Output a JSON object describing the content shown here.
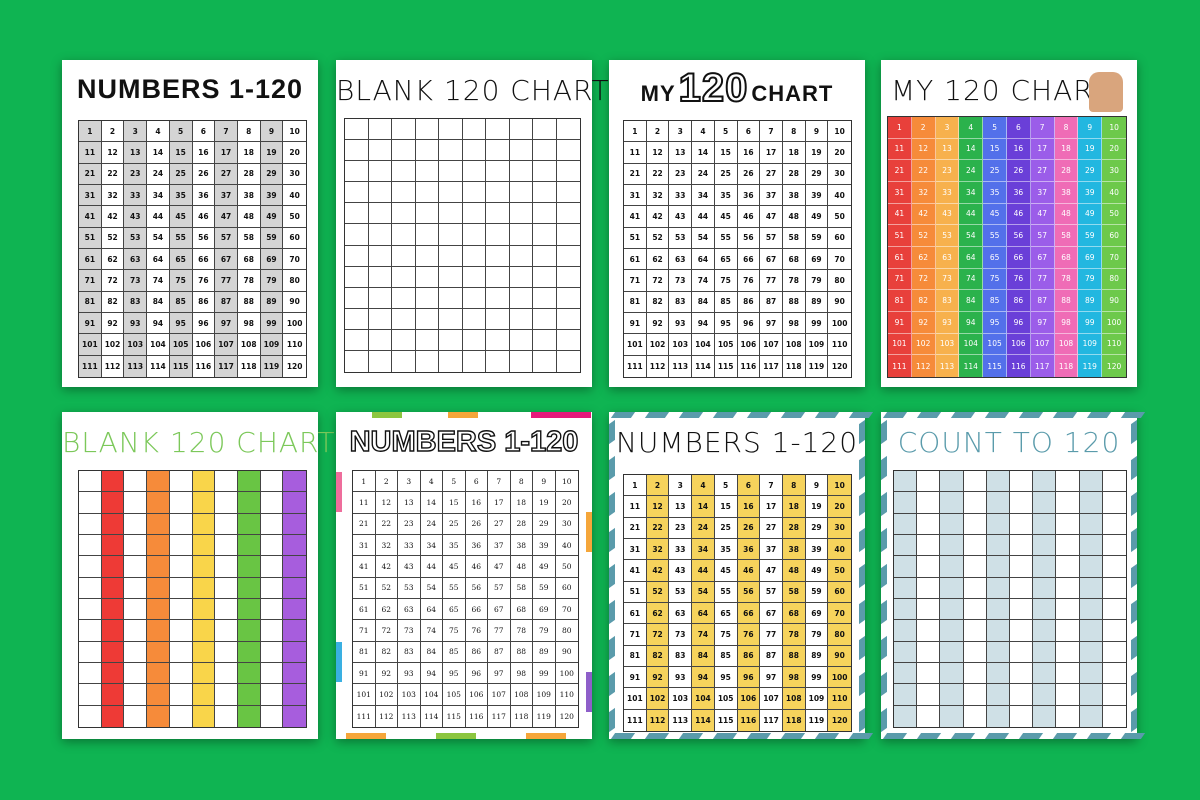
{
  "numbers": [
    1,
    2,
    3,
    4,
    5,
    6,
    7,
    8,
    9,
    10,
    11,
    12,
    13,
    14,
    15,
    16,
    17,
    18,
    19,
    20,
    21,
    22,
    23,
    24,
    25,
    26,
    27,
    28,
    29,
    30,
    31,
    32,
    33,
    34,
    35,
    36,
    37,
    38,
    39,
    40,
    41,
    42,
    43,
    44,
    45,
    46,
    47,
    48,
    49,
    50,
    51,
    52,
    53,
    54,
    55,
    56,
    57,
    58,
    59,
    60,
    61,
    62,
    63,
    64,
    65,
    66,
    67,
    68,
    69,
    70,
    71,
    72,
    73,
    74,
    75,
    76,
    77,
    78,
    79,
    80,
    81,
    82,
    83,
    84,
    85,
    86,
    87,
    88,
    89,
    90,
    91,
    92,
    93,
    94,
    95,
    96,
    97,
    98,
    99,
    100,
    101,
    102,
    103,
    104,
    105,
    106,
    107,
    108,
    109,
    110,
    111,
    112,
    113,
    114,
    115,
    116,
    117,
    118,
    119,
    120
  ],
  "colors": {
    "background": "#0fb452",
    "gray_column": "#d4d4d4",
    "yellow_column": "#f6d35c",
    "blue_column": "#cfe0e6",
    "teal_stripe": "#5a9bab",
    "rainbow": [
      "#e8403b",
      "#f68b3a",
      "#f7b14d",
      "#2bb24c",
      "#5370ea",
      "#6a3fd8",
      "#9b5de9",
      "#ef6cb6",
      "#22b7e0",
      "#6dc94b"
    ],
    "rainbow_blank": [
      "#ffffff",
      "#ee3a36",
      "#ffffff",
      "#f68b3a",
      "#ffffff",
      "#f9d54a",
      "#ffffff",
      "#69c544",
      "#ffffff",
      "#a75ddd"
    ]
  },
  "cards": [
    {
      "title": "NUMBERS 1-120",
      "style": "gray",
      "filled": true
    },
    {
      "title": "BLANK 120 CHART",
      "style": "blank",
      "filled": false
    },
    {
      "title_prefix": "MY",
      "title_big": "120",
      "title_suffix": "CHART",
      "style": "plain",
      "filled": true
    },
    {
      "title": "MY 120 CHART",
      "style": "rainbow",
      "filled": true
    },
    {
      "title": "BLANK 120 CHART",
      "style": "rainbow-blank",
      "filled": false
    },
    {
      "title": "NUMBERS 1-120",
      "style": "outline",
      "filled": true
    },
    {
      "title": "NUMBERS 1-120",
      "style": "yellow",
      "filled": true
    },
    {
      "title": "COUNT TO 120",
      "style": "blue",
      "filled": false
    }
  ]
}
